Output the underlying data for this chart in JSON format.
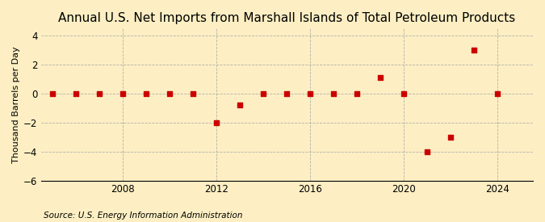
{
  "title": "Annual U.S. Net Imports from Marshall Islands of Total Petroleum Products",
  "ylabel": "Thousand Barrels per Day",
  "source": "Source: U.S. Energy Information Administration",
  "background_color": "#fdefc3",
  "plot_bg_color": "#fdefc3",
  "data_years": [
    2005,
    2006,
    2007,
    2008,
    2009,
    2010,
    2011,
    2012,
    2013,
    2014,
    2015,
    2016,
    2017,
    2018,
    2019,
    2020,
    2021,
    2022,
    2023,
    2024
  ],
  "data_values": [
    0,
    0,
    0,
    0,
    0,
    0,
    0,
    -2.0,
    -0.8,
    0,
    0,
    0,
    0,
    0,
    1.1,
    0,
    -4.0,
    -3.0,
    3.0,
    0
  ],
  "xlim": [
    2004.5,
    2025.5
  ],
  "ylim": [
    -6,
    4.5
  ],
  "yticks": [
    -6,
    -4,
    -2,
    0,
    2,
    4
  ],
  "xticks": [
    2008,
    2012,
    2016,
    2020,
    2024
  ],
  "marker_color": "#cc0000",
  "marker_size": 5,
  "grid_color": "#aaaaaa",
  "title_fontsize": 11,
  "label_fontsize": 8,
  "tick_fontsize": 8.5,
  "source_fontsize": 7.5
}
